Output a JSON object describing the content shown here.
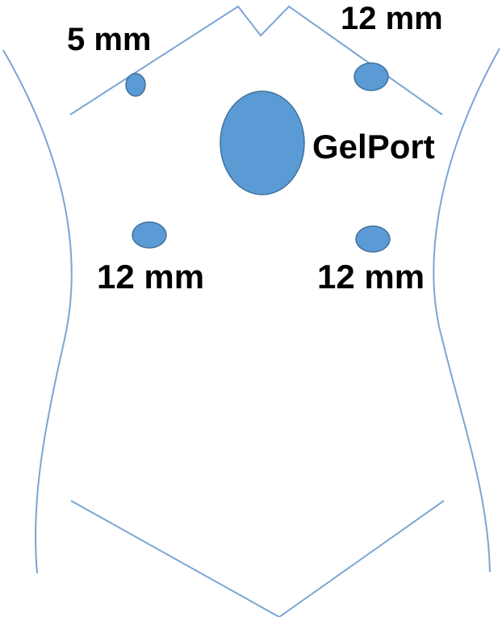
{
  "colors": {
    "outline": "#7aa6d6",
    "port_fill": "#5b9bd5",
    "port_stroke": "#41719c",
    "label": "#000000"
  },
  "labels": {
    "port_5mm": "5 mm",
    "port_12mm_top_right": "12 mm",
    "gelport": "GelPort",
    "port_12mm_mid_left": "12 mm",
    "port_12mm_mid_right": "12 mm"
  }
}
